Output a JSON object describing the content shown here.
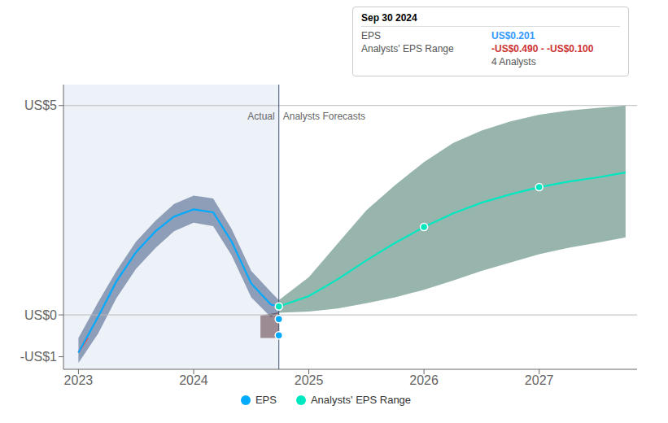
{
  "chart_data": {
    "type": "line",
    "xlim": [
      2022.87,
      2027.85
    ],
    "xticks": [
      2023,
      2024,
      2025,
      2026,
      2027
    ],
    "ylim": [
      -1.3,
      5.5
    ],
    "yticks": [
      {
        "value": -1,
        "label": "-US$1"
      },
      {
        "value": 0,
        "label": "US$0"
      },
      {
        "value": 5,
        "label": "US$5"
      }
    ],
    "grid": false,
    "legend": "bottom",
    "hlines": [
      5.0,
      0.0
    ],
    "divider_x": 2024.74,
    "series": [
      {
        "type": "area",
        "color": "#1a3a6b",
        "x": [
          2023.0,
          2023.17,
          2023.33,
          2023.5,
          2023.67,
          2023.83,
          2024.0,
          2024.17,
          2024.33,
          2024.5,
          2024.67,
          2024.74
        ],
        "lower": [
          -1.15,
          -0.45,
          0.4,
          1.1,
          1.6,
          2.0,
          2.2,
          2.12,
          1.42,
          0.42,
          -0.05,
          0.05
        ],
        "upper": [
          -0.55,
          0.3,
          1.05,
          1.75,
          2.25,
          2.65,
          2.85,
          2.78,
          2.05,
          1.05,
          0.55,
          0.35
        ]
      },
      {
        "type": "area",
        "color": "#3a0f18",
        "x": [
          2024.58,
          2024.74
        ],
        "lower": [
          -0.55,
          -0.55
        ],
        "upper": [
          -0.02,
          0.06
        ]
      },
      {
        "type": "area",
        "color": "#1a5c4a",
        "x": [
          2024.74,
          2025.0,
          2025.25,
          2025.5,
          2025.75,
          2026.0,
          2026.25,
          2026.5,
          2026.75,
          2027.0,
          2027.25,
          2027.5,
          2027.75
        ],
        "lower": [
          0.05,
          0.08,
          0.15,
          0.28,
          0.42,
          0.6,
          0.82,
          1.05,
          1.25,
          1.45,
          1.6,
          1.72,
          1.85
        ],
        "upper": [
          0.35,
          0.9,
          1.7,
          2.5,
          3.1,
          3.65,
          4.1,
          4.4,
          4.62,
          4.78,
          4.88,
          4.94,
          5.0
        ]
      },
      {
        "type": "line",
        "color": "#ff4444",
        "x": [
          2023.0,
          2023.08
        ],
        "values": [
          -0.9,
          -0.55
        ]
      },
      {
        "name": "EPS",
        "type": "line",
        "color": "#00aaff",
        "x": [
          2023.0,
          2023.17,
          2023.33,
          2023.5,
          2023.67,
          2023.83,
          2024.0,
          2024.17,
          2024.33,
          2024.5,
          2024.67,
          2024.74
        ],
        "values": [
          -0.9,
          -0.05,
          0.8,
          1.5,
          2.0,
          2.35,
          2.52,
          2.45,
          1.75,
          0.75,
          0.25,
          0.201
        ]
      },
      {
        "name": "Analysts' EPS Range",
        "type": "line",
        "color": "#00e8c0",
        "x": [
          2024.74,
          2025.0,
          2025.25,
          2025.5,
          2025.75,
          2026.0,
          2026.25,
          2026.5,
          2026.75,
          2027.0,
          2027.25,
          2027.5,
          2027.75
        ],
        "values": [
          0.201,
          0.45,
          0.85,
          1.3,
          1.72,
          2.1,
          2.42,
          2.68,
          2.88,
          3.05,
          3.18,
          3.28,
          3.4
        ]
      },
      {
        "type": "scatter",
        "color": "#00e8c0",
        "x": [
          2024.74
        ],
        "values": [
          0.201
        ]
      },
      {
        "type": "scatter",
        "color": "#00aaff",
        "x": [
          2024.74,
          2024.74
        ],
        "values": [
          -0.1,
          -0.49
        ]
      },
      {
        "type": "scatter",
        "color": "#00e8c0",
        "x": [
          2026.0,
          2027.0
        ],
        "values": [
          2.1,
          3.05
        ]
      }
    ],
    "annotations": [
      {
        "text": "Actual",
        "x": 2024.74,
        "y": 4.75
      },
      {
        "text": "Analysts Forecasts",
        "x": 2024.74,
        "y": 4.75
      }
    ],
    "tooltip": {
      "date": "Sep 30 2024",
      "rows": [
        {
          "label": "EPS",
          "value": "US$0.201",
          "color": "#3399ff"
        },
        {
          "label": "Analysts' EPS Range",
          "value": "-US$0.490 - -US$0.100",
          "color": "#cc3333"
        }
      ],
      "note": "4 Analysts"
    }
  }
}
